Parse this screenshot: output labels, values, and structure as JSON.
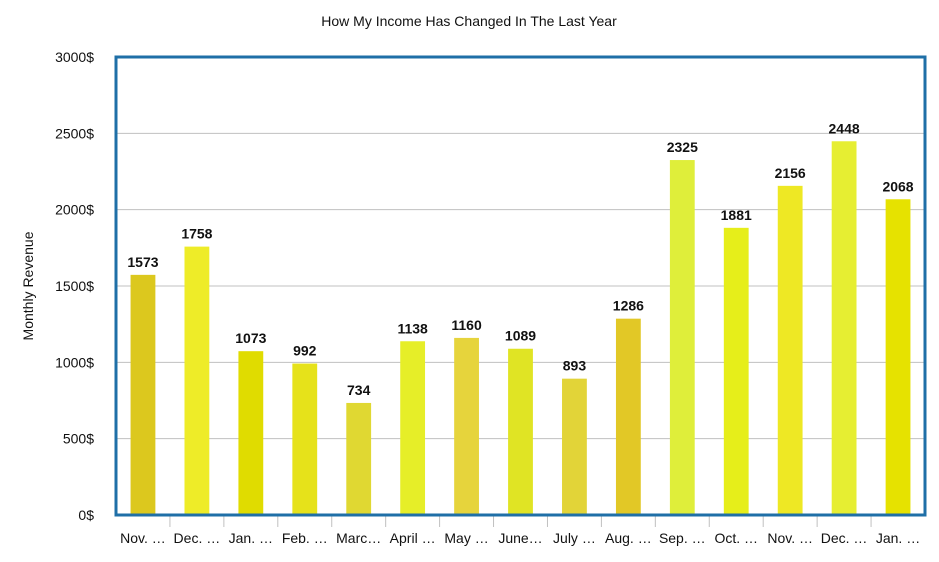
{
  "chart_data": {
    "type": "bar",
    "title": "How My Income Has Changed In The Last Year",
    "xlabel": "",
    "ylabel": "Monthly Revenue",
    "ylim": [
      0,
      3000
    ],
    "yticks": [
      0,
      500,
      1000,
      1500,
      2000,
      2500,
      3000
    ],
    "ytick_labels": [
      "0$",
      "500$",
      "1000$",
      "1500$",
      "2000$",
      "2500$",
      "3000$"
    ],
    "grid": true,
    "legend": "none",
    "categories": [
      "Nov. …",
      "Dec. …",
      "Jan. …",
      "Feb. …",
      "Marc…",
      "April …",
      "May …",
      "June…",
      "July …",
      "Aug. …",
      "Sep. …",
      "Oct. …",
      "Nov. …",
      "Dec. …",
      "Jan. …"
    ],
    "values": [
      1573,
      1758,
      1073,
      992,
      734,
      1138,
      1160,
      1089,
      893,
      1286,
      2325,
      1881,
      2156,
      2448,
      2068
    ],
    "data_labels": [
      "1573",
      "1758",
      "1073",
      "992",
      "734",
      "1138",
      "1160",
      "1089",
      "893",
      "1286",
      "2325",
      "1881",
      "2156",
      "2448",
      "2068"
    ],
    "bar_colors": [
      "#dcc81e",
      "#eeec28",
      "#e0dc00",
      "#e6e21a",
      "#e0d832",
      "#e6ee28",
      "#e6d43c",
      "#e0e424",
      "#e2d438",
      "#e2c826",
      "#dfee3a",
      "#e6ee1a",
      "#eee824",
      "#e6ee32",
      "#e6e200"
    ],
    "frame_color": "#1f6fa7",
    "grid_color": "#c0c0c0"
  }
}
